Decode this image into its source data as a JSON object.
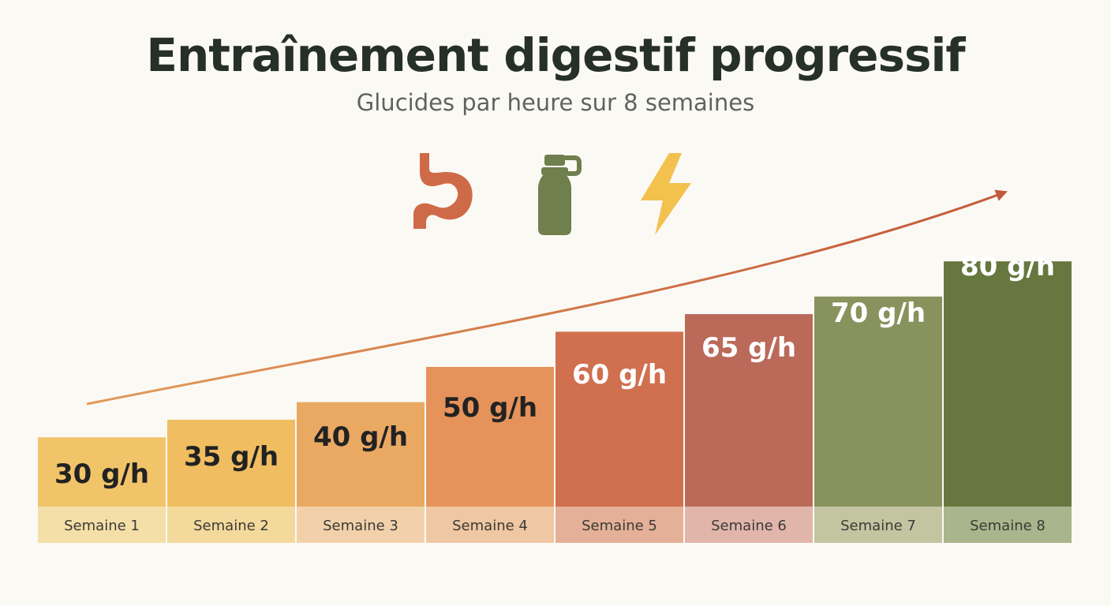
{
  "header": {
    "title": "Entraînement digestif progressif",
    "subtitle": "Glucides par heure sur 8 semaines"
  },
  "icons": [
    "stomach-icon",
    "bottle-icon",
    "lightning-icon"
  ],
  "colors": {
    "background": "#fbf9f4",
    "title": "#263029",
    "subtitle": "#5e6360",
    "trend_arrow": "#c2593a",
    "stomach_icon": "#cf6a48",
    "bottle_icon": "#6f7f4d",
    "lightning_icon": "#f2c14e",
    "bars": [
      "#f2c46a",
      "#f0bd60",
      "#eaa963",
      "#e5935a",
      "#d0704f",
      "#bb6a5a",
      "#88925c",
      "#66773f"
    ],
    "label_cells": [
      "#f5dfa8",
      "#f4d99c",
      "#f2d1aa",
      "#efc7a2",
      "#e5b098",
      "#e1b5aa",
      "#c2c5a0",
      "#a9b58c"
    ]
  },
  "chart_data": {
    "type": "bar",
    "title": "Entraînement digestif progressif",
    "subtitle": "Glucides par heure sur 8 semaines",
    "categories": [
      "Semaine 1",
      "Semaine 2",
      "Semaine 3",
      "Semaine 4",
      "Semaine 5",
      "Semaine 6",
      "Semaine 7",
      "Semaine 8"
    ],
    "values": [
      30,
      35,
      40,
      50,
      60,
      65,
      70,
      80
    ],
    "data_labels": [
      "30 g/h",
      "35 g/h",
      "40 g/h",
      "50 g/h",
      "60 g/h",
      "65 g/h",
      "70 g/h",
      "80 g/h"
    ],
    "unit": "g/h",
    "trend_arrow": true,
    "grid": false,
    "legend": "none"
  }
}
